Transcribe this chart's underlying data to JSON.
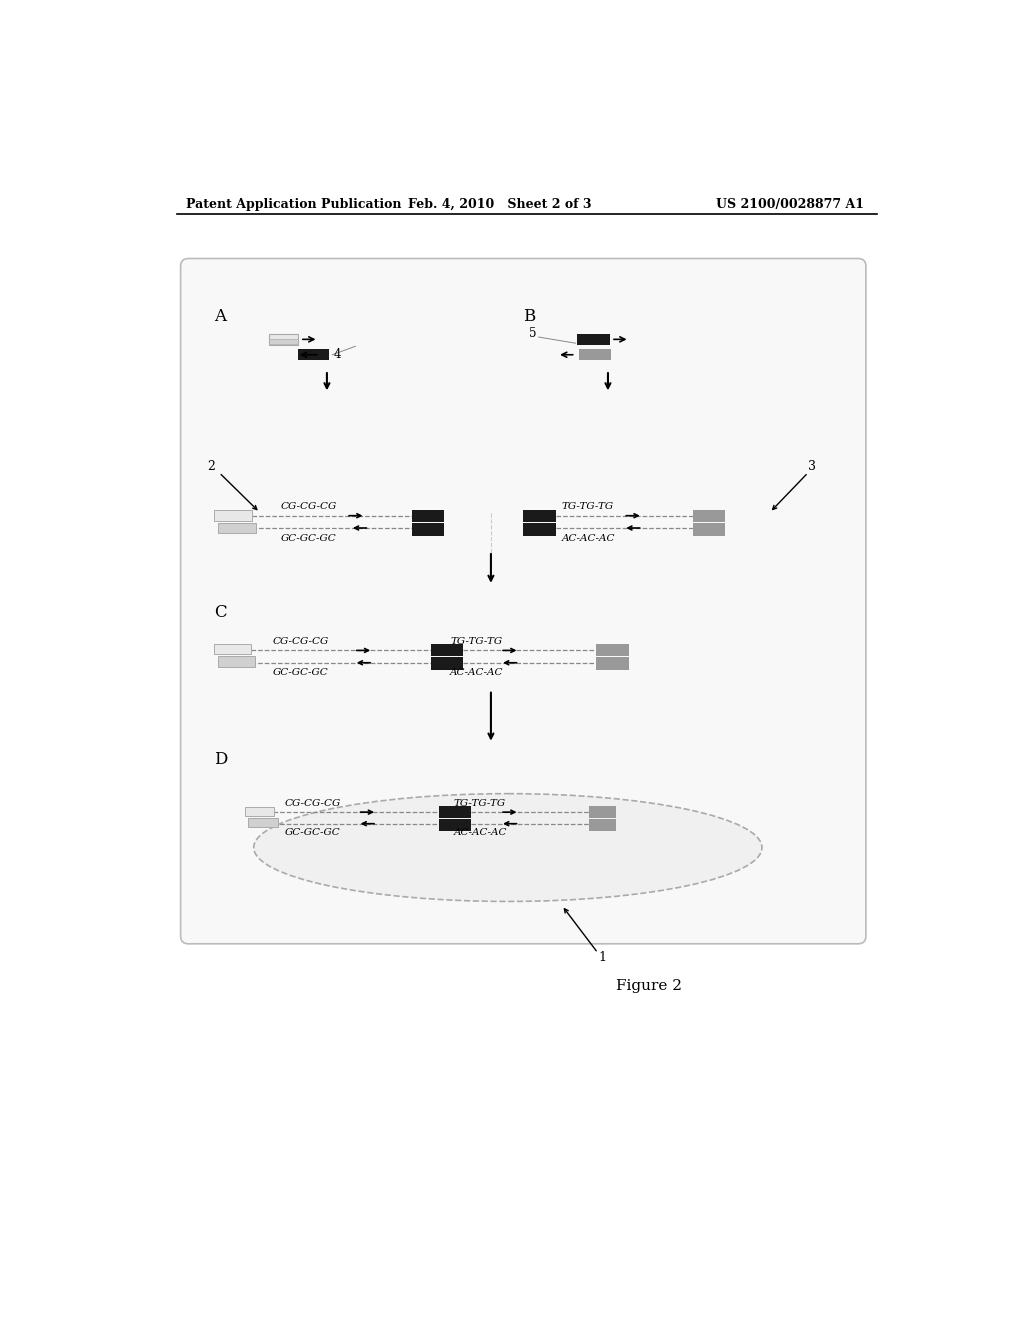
{
  "header_left": "Patent Application Publication",
  "header_mid": "Feb. 4, 2010   Sheet 2 of 3",
  "header_right": "US 2100/0028877 A1",
  "figure_label": "Figure 2",
  "bg_color": "#ffffff",
  "black_box_color": "#1a1a1a",
  "gray_box_color": "#999999",
  "white_box_color_1": "#e8e8e8",
  "white_box_color_2": "#d0d0d0",
  "dashed_line_color": "#888888",
  "label_A": "A",
  "label_B": "B",
  "label_C": "C",
  "label_D": "D",
  "label_2": "2",
  "label_3": "3",
  "label_4": "4",
  "label_5": "5",
  "label_1": "1",
  "text_CG": "CG-CG-CG",
  "text_GC": "GC-GC-GC",
  "text_TG": "TG-TG-TG",
  "text_AC": "AC-AC-AC"
}
